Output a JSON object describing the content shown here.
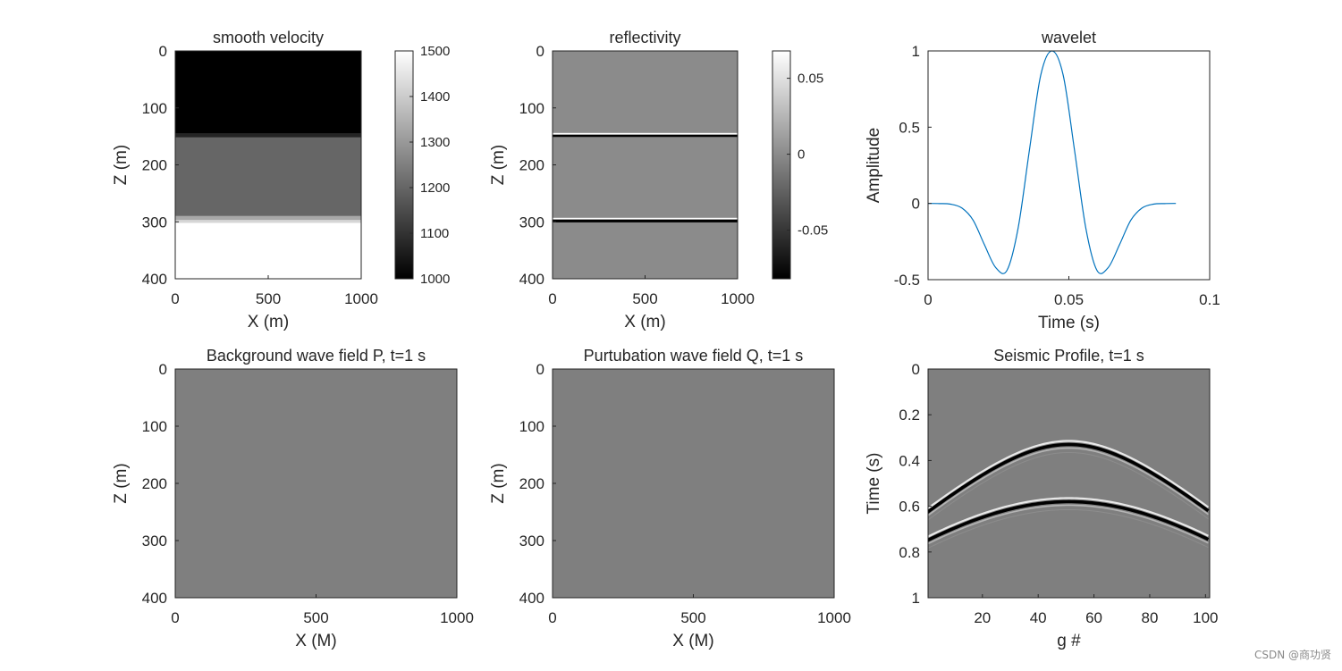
{
  "watermark": "CSDN @商功贤",
  "colors": {
    "line": "#0072BD",
    "axis": "#262626",
    "background": "#ffffff"
  },
  "chart_data": [
    {
      "type": "heatmap",
      "title": "smooth velocity",
      "xlabel": "X (m)",
      "ylabel": "Z (m)",
      "xlim": [
        0,
        1000
      ],
      "ylim": [
        0,
        400
      ],
      "xticks": [
        "0",
        "500",
        "1000"
      ],
      "yticks": [
        "0",
        "100",
        "200",
        "300",
        "400"
      ],
      "colormap": "gray",
      "colorbar": {
        "range": [
          1000,
          1500
        ],
        "ticks": [
          "1000",
          "1100",
          "1200",
          "1300",
          "1400",
          "1500"
        ]
      },
      "layers": [
        {
          "z_from": 0,
          "z_to": 145,
          "value": 1000
        },
        {
          "z_from": 145,
          "z_to": 152,
          "value": 1070
        },
        {
          "z_from": 152,
          "z_to": 290,
          "value": 1200
        },
        {
          "z_from": 290,
          "z_to": 297,
          "value": 1330
        },
        {
          "z_from": 297,
          "z_to": 302,
          "value": 1420
        },
        {
          "z_from": 302,
          "z_to": 400,
          "value": 1500
        }
      ]
    },
    {
      "type": "heatmap",
      "title": "reflectivity",
      "xlabel": "X (m)",
      "ylabel": "Z (m)",
      "xlim": [
        0,
        1000
      ],
      "ylim": [
        0,
        400
      ],
      "xticks": [
        "0",
        "500",
        "1000"
      ],
      "yticks": [
        "0",
        "100",
        "200",
        "300",
        "400"
      ],
      "colormap": "gray",
      "colorbar": {
        "range": [
          -0.082,
          0.068
        ],
        "ticks": [
          "-0.05",
          "0",
          "0.05"
        ],
        "tick_values": [
          -0.05,
          0,
          0.05
        ]
      },
      "background_value": 0,
      "reflectors": [
        {
          "z_from": 144,
          "z_to": 147,
          "value": 0.068
        },
        {
          "z_from": 147,
          "z_to": 151,
          "value": -0.082
        },
        {
          "z_from": 293,
          "z_to": 296,
          "value": 0.068
        },
        {
          "z_from": 296,
          "z_to": 301,
          "value": -0.082
        }
      ]
    },
    {
      "type": "line",
      "title": "wavelet",
      "xlabel": "Time (s)",
      "ylabel": "Amplitude",
      "xlim": [
        0,
        0.1
      ],
      "ylim": [
        -0.5,
        1
      ],
      "xticks": [
        "0",
        "0.05",
        "0.1"
      ],
      "yticks": [
        "-0.5",
        "0",
        "0.5",
        "1"
      ],
      "series": [
        {
          "x": [
            0,
            0.004,
            0.008,
            0.012,
            0.016,
            0.02,
            0.024,
            0.028,
            0.032,
            0.036,
            0.04,
            0.044,
            0.048,
            0.052,
            0.056,
            0.06,
            0.064,
            0.068,
            0.072,
            0.076,
            0.08,
            0.084,
            0.088
          ],
          "y": [
            0,
            -0.001,
            -0.005,
            -0.03,
            -0.11,
            -0.27,
            -0.42,
            -0.44,
            -0.16,
            0.35,
            0.84,
            1.0,
            0.84,
            0.35,
            -0.16,
            -0.44,
            -0.42,
            -0.27,
            -0.11,
            -0.03,
            -0.005,
            -0.001,
            0
          ]
        }
      ]
    },
    {
      "type": "heatmap",
      "title": "Background wave field P, t=1 s",
      "xlabel": "X (M)",
      "ylabel": "Z (m)",
      "xlim": [
        0,
        1000
      ],
      "ylim": [
        0,
        400
      ],
      "xticks": [
        "0",
        "500",
        "1000"
      ],
      "yticks": [
        "0",
        "100",
        "200",
        "300",
        "400"
      ],
      "colormap": "gray",
      "fill": "#7f7f7f"
    },
    {
      "type": "heatmap",
      "title": "Purtubation wave field Q, t=1 s",
      "xlabel": "X (M)",
      "ylabel": "Z (m)",
      "xlim": [
        0,
        1000
      ],
      "ylim": [
        0,
        400
      ],
      "xticks": [
        "0",
        "500",
        "1000"
      ],
      "yticks": [
        "0",
        "100",
        "200",
        "300",
        "400"
      ],
      "colormap": "gray",
      "fill": "#7f7f7f"
    },
    {
      "type": "heatmap",
      "title": "Seismic Profile, t=1 s",
      "xlabel": "g #",
      "ylabel": "Time (s)",
      "xlim": [
        0.5,
        101.5
      ],
      "ylim": [
        0,
        1
      ],
      "xticks": [
        "20",
        "40",
        "60",
        "80",
        "100"
      ],
      "xtick_values": [
        20,
        40,
        60,
        80,
        100
      ],
      "yticks": [
        "0",
        "0.2",
        "0.4",
        "0.6",
        "0.8",
        "1"
      ],
      "yticks_values": [
        0,
        0.2,
        0.4,
        0.6,
        0.8,
        1
      ],
      "colormap": "gray",
      "fill": "#7f7f7f",
      "events": [
        {
          "apex_trace": 51,
          "apex_time": 0.33,
          "edge_time": 0.62
        },
        {
          "apex_trace": 51,
          "apex_time": 0.58,
          "edge_time": 0.745
        }
      ]
    }
  ]
}
